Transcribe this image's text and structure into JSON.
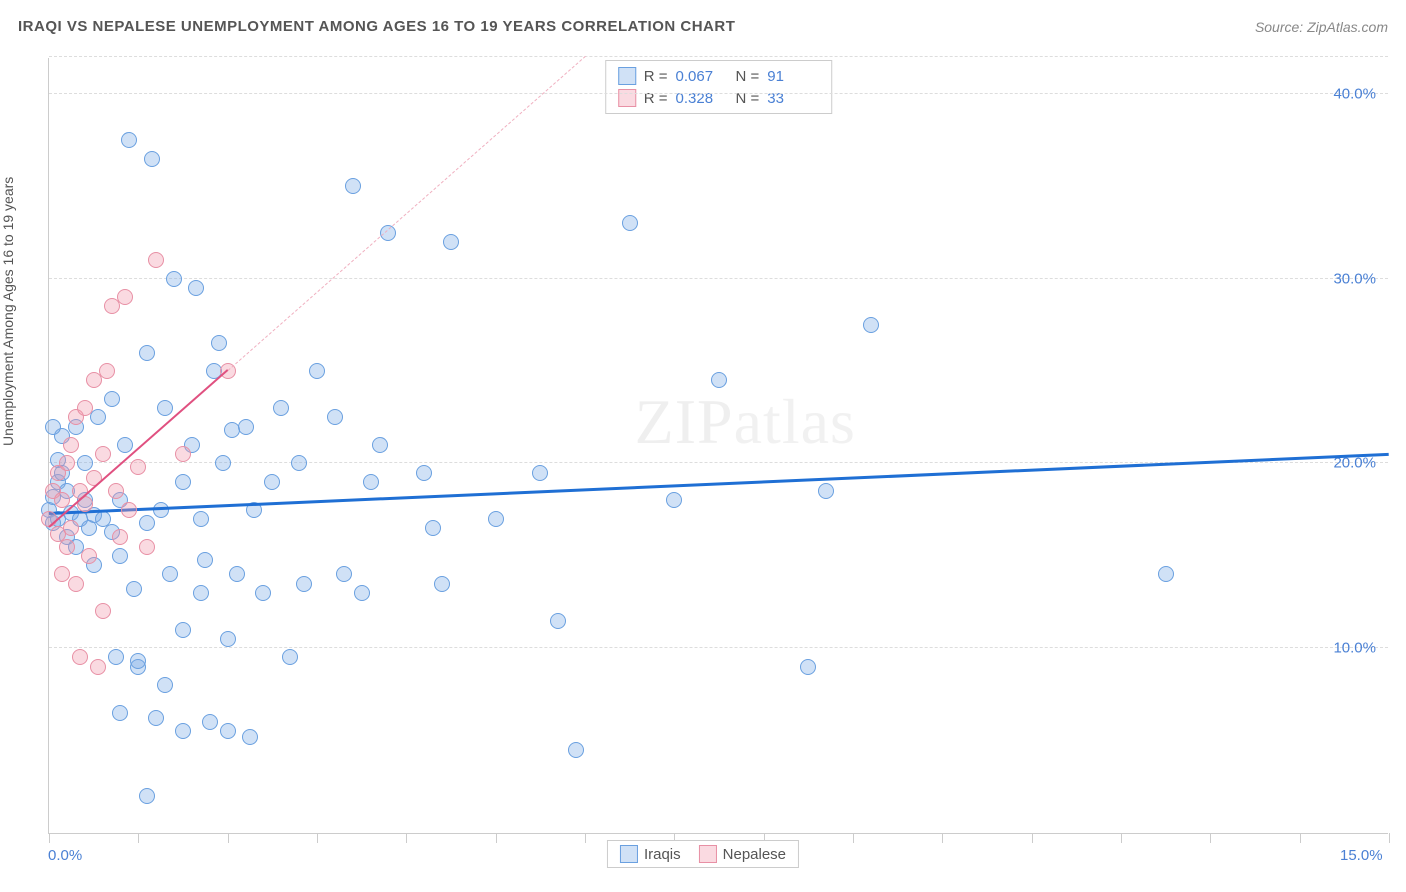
{
  "title": "IRAQI VS NEPALESE UNEMPLOYMENT AMONG AGES 16 TO 19 YEARS CORRELATION CHART",
  "source": "Source: ZipAtlas.com",
  "watermark_bold": "ZIP",
  "watermark_thin": "atlas",
  "chart": {
    "type": "scatter",
    "ylabel": "Unemployment Among Ages 16 to 19 years",
    "background_color": "#ffffff",
    "grid_color": "#dddddd",
    "axis_color": "#cccccc",
    "tick_label_color": "#4a80d4",
    "text_color": "#555555",
    "xlim": [
      0,
      15
    ],
    "ylim": [
      0,
      42
    ],
    "x_ticks": [
      0,
      1,
      2,
      3,
      4,
      5,
      6,
      7,
      8,
      9,
      10,
      11,
      12,
      13,
      14,
      15
    ],
    "x_tick_labels": [
      {
        "v": 0,
        "t": "0.0%"
      },
      {
        "v": 15,
        "t": "15.0%"
      }
    ],
    "y_tick_labels": [
      {
        "v": 10,
        "t": "10.0%"
      },
      {
        "v": 20,
        "t": "20.0%"
      },
      {
        "v": 30,
        "t": "30.0%"
      },
      {
        "v": 40,
        "t": "40.0%"
      }
    ],
    "y_gridlines": [
      10,
      20,
      30,
      40,
      42
    ],
    "marker_radius": 8,
    "series": [
      {
        "name": "Iraqis",
        "fill": "rgba(120,170,230,0.35)",
        "stroke": "#6aa0e0",
        "R": "0.067",
        "N": "91",
        "trend": {
          "color": "#1f6fd4",
          "width": 3,
          "dash": "solid",
          "x1": 0,
          "y1": 17.2,
          "x2": 15,
          "y2": 20.4
        },
        "points": [
          [
            0.0,
            17.5
          ],
          [
            0.05,
            16.8
          ],
          [
            0.05,
            18.2
          ],
          [
            0.1,
            17.0
          ],
          [
            0.1,
            19.0
          ],
          [
            0.1,
            20.2
          ],
          [
            0.15,
            21.5
          ],
          [
            0.2,
            18.5
          ],
          [
            0.2,
            16.0
          ],
          [
            0.25,
            17.3
          ],
          [
            0.3,
            22.0
          ],
          [
            0.3,
            15.5
          ],
          [
            0.35,
            17.0
          ],
          [
            0.4,
            18.0
          ],
          [
            0.4,
            20.0
          ],
          [
            0.45,
            16.5
          ],
          [
            0.5,
            17.2
          ],
          [
            0.5,
            14.5
          ],
          [
            0.55,
            22.5
          ],
          [
            0.6,
            17.0
          ],
          [
            0.7,
            16.3
          ],
          [
            0.7,
            23.5
          ],
          [
            0.75,
            9.5
          ],
          [
            0.8,
            18.0
          ],
          [
            0.8,
            15.0
          ],
          [
            0.8,
            6.5
          ],
          [
            0.85,
            21.0
          ],
          [
            0.9,
            37.5
          ],
          [
            0.95,
            13.2
          ],
          [
            1.0,
            9.0
          ],
          [
            1.0,
            9.3
          ],
          [
            1.1,
            16.8
          ],
          [
            1.1,
            26.0
          ],
          [
            1.1,
            2.0
          ],
          [
            1.15,
            36.5
          ],
          [
            1.2,
            6.2
          ],
          [
            1.25,
            17.5
          ],
          [
            1.3,
            8.0
          ],
          [
            1.3,
            23.0
          ],
          [
            1.35,
            14.0
          ],
          [
            1.4,
            30.0
          ],
          [
            1.5,
            11.0
          ],
          [
            1.5,
            19.0
          ],
          [
            1.5,
            5.5
          ],
          [
            1.6,
            21.0
          ],
          [
            1.65,
            29.5
          ],
          [
            1.7,
            13.0
          ],
          [
            1.7,
            17.0
          ],
          [
            1.75,
            14.8
          ],
          [
            1.8,
            6.0
          ],
          [
            1.85,
            25.0
          ],
          [
            1.9,
            26.5
          ],
          [
            1.95,
            20.0
          ],
          [
            2.0,
            5.5
          ],
          [
            2.0,
            10.5
          ],
          [
            2.05,
            21.8
          ],
          [
            2.1,
            14.0
          ],
          [
            2.2,
            22.0
          ],
          [
            2.25,
            5.2
          ],
          [
            2.3,
            17.5
          ],
          [
            2.4,
            13.0
          ],
          [
            2.5,
            19.0
          ],
          [
            2.6,
            23.0
          ],
          [
            2.7,
            9.5
          ],
          [
            2.8,
            20.0
          ],
          [
            2.85,
            13.5
          ],
          [
            3.0,
            25.0
          ],
          [
            3.2,
            22.5
          ],
          [
            3.3,
            14.0
          ],
          [
            3.4,
            35.0
          ],
          [
            3.5,
            13.0
          ],
          [
            3.6,
            19.0
          ],
          [
            3.7,
            21.0
          ],
          [
            3.8,
            32.5
          ],
          [
            4.2,
            19.5
          ],
          [
            4.3,
            16.5
          ],
          [
            4.4,
            13.5
          ],
          [
            4.5,
            32.0
          ],
          [
            5.0,
            17.0
          ],
          [
            5.5,
            19.5
          ],
          [
            5.7,
            11.5
          ],
          [
            5.9,
            4.5
          ],
          [
            6.5,
            33.0
          ],
          [
            7.0,
            18.0
          ],
          [
            7.5,
            24.5
          ],
          [
            8.5,
            9.0
          ],
          [
            8.7,
            18.5
          ],
          [
            9.2,
            27.5
          ],
          [
            12.5,
            14.0
          ],
          [
            0.05,
            22.0
          ],
          [
            0.15,
            19.5
          ]
        ]
      },
      {
        "name": "Nepalese",
        "fill": "rgba(240,150,170,0.35)",
        "stroke": "#e890a5",
        "R": "0.328",
        "N": "33",
        "trend": {
          "color": "#e05080",
          "width": 2,
          "dash": "solid",
          "x1": 0,
          "y1": 16.5,
          "x2": 2.0,
          "y2": 25.0
        },
        "trend_ext": {
          "color": "#f0b0c0",
          "width": 1,
          "dash": "dashed",
          "x1": 2.0,
          "y1": 25.0,
          "x2": 6.0,
          "y2": 42.0
        },
        "points": [
          [
            0.0,
            17.0
          ],
          [
            0.05,
            18.5
          ],
          [
            0.1,
            16.2
          ],
          [
            0.1,
            19.5
          ],
          [
            0.15,
            14.0
          ],
          [
            0.15,
            18.0
          ],
          [
            0.2,
            20.0
          ],
          [
            0.2,
            15.5
          ],
          [
            0.25,
            21.0
          ],
          [
            0.25,
            16.5
          ],
          [
            0.3,
            22.5
          ],
          [
            0.3,
            13.5
          ],
          [
            0.35,
            18.5
          ],
          [
            0.35,
            9.5
          ],
          [
            0.4,
            23.0
          ],
          [
            0.4,
            17.8
          ],
          [
            0.45,
            15.0
          ],
          [
            0.5,
            19.2
          ],
          [
            0.5,
            24.5
          ],
          [
            0.55,
            9.0
          ],
          [
            0.6,
            20.5
          ],
          [
            0.6,
            12.0
          ],
          [
            0.65,
            25.0
          ],
          [
            0.7,
            28.5
          ],
          [
            0.75,
            18.5
          ],
          [
            0.8,
            16.0
          ],
          [
            0.85,
            29.0
          ],
          [
            0.9,
            17.5
          ],
          [
            1.0,
            19.8
          ],
          [
            1.1,
            15.5
          ],
          [
            1.2,
            31.0
          ],
          [
            1.5,
            20.5
          ],
          [
            2.0,
            25.0
          ]
        ]
      }
    ],
    "legend_bottom": [
      {
        "label": "Iraqis",
        "fill": "rgba(120,170,230,0.35)",
        "stroke": "#6aa0e0"
      },
      {
        "label": "Nepalese",
        "fill": "rgba(240,150,170,0.35)",
        "stroke": "#e890a5"
      }
    ]
  }
}
